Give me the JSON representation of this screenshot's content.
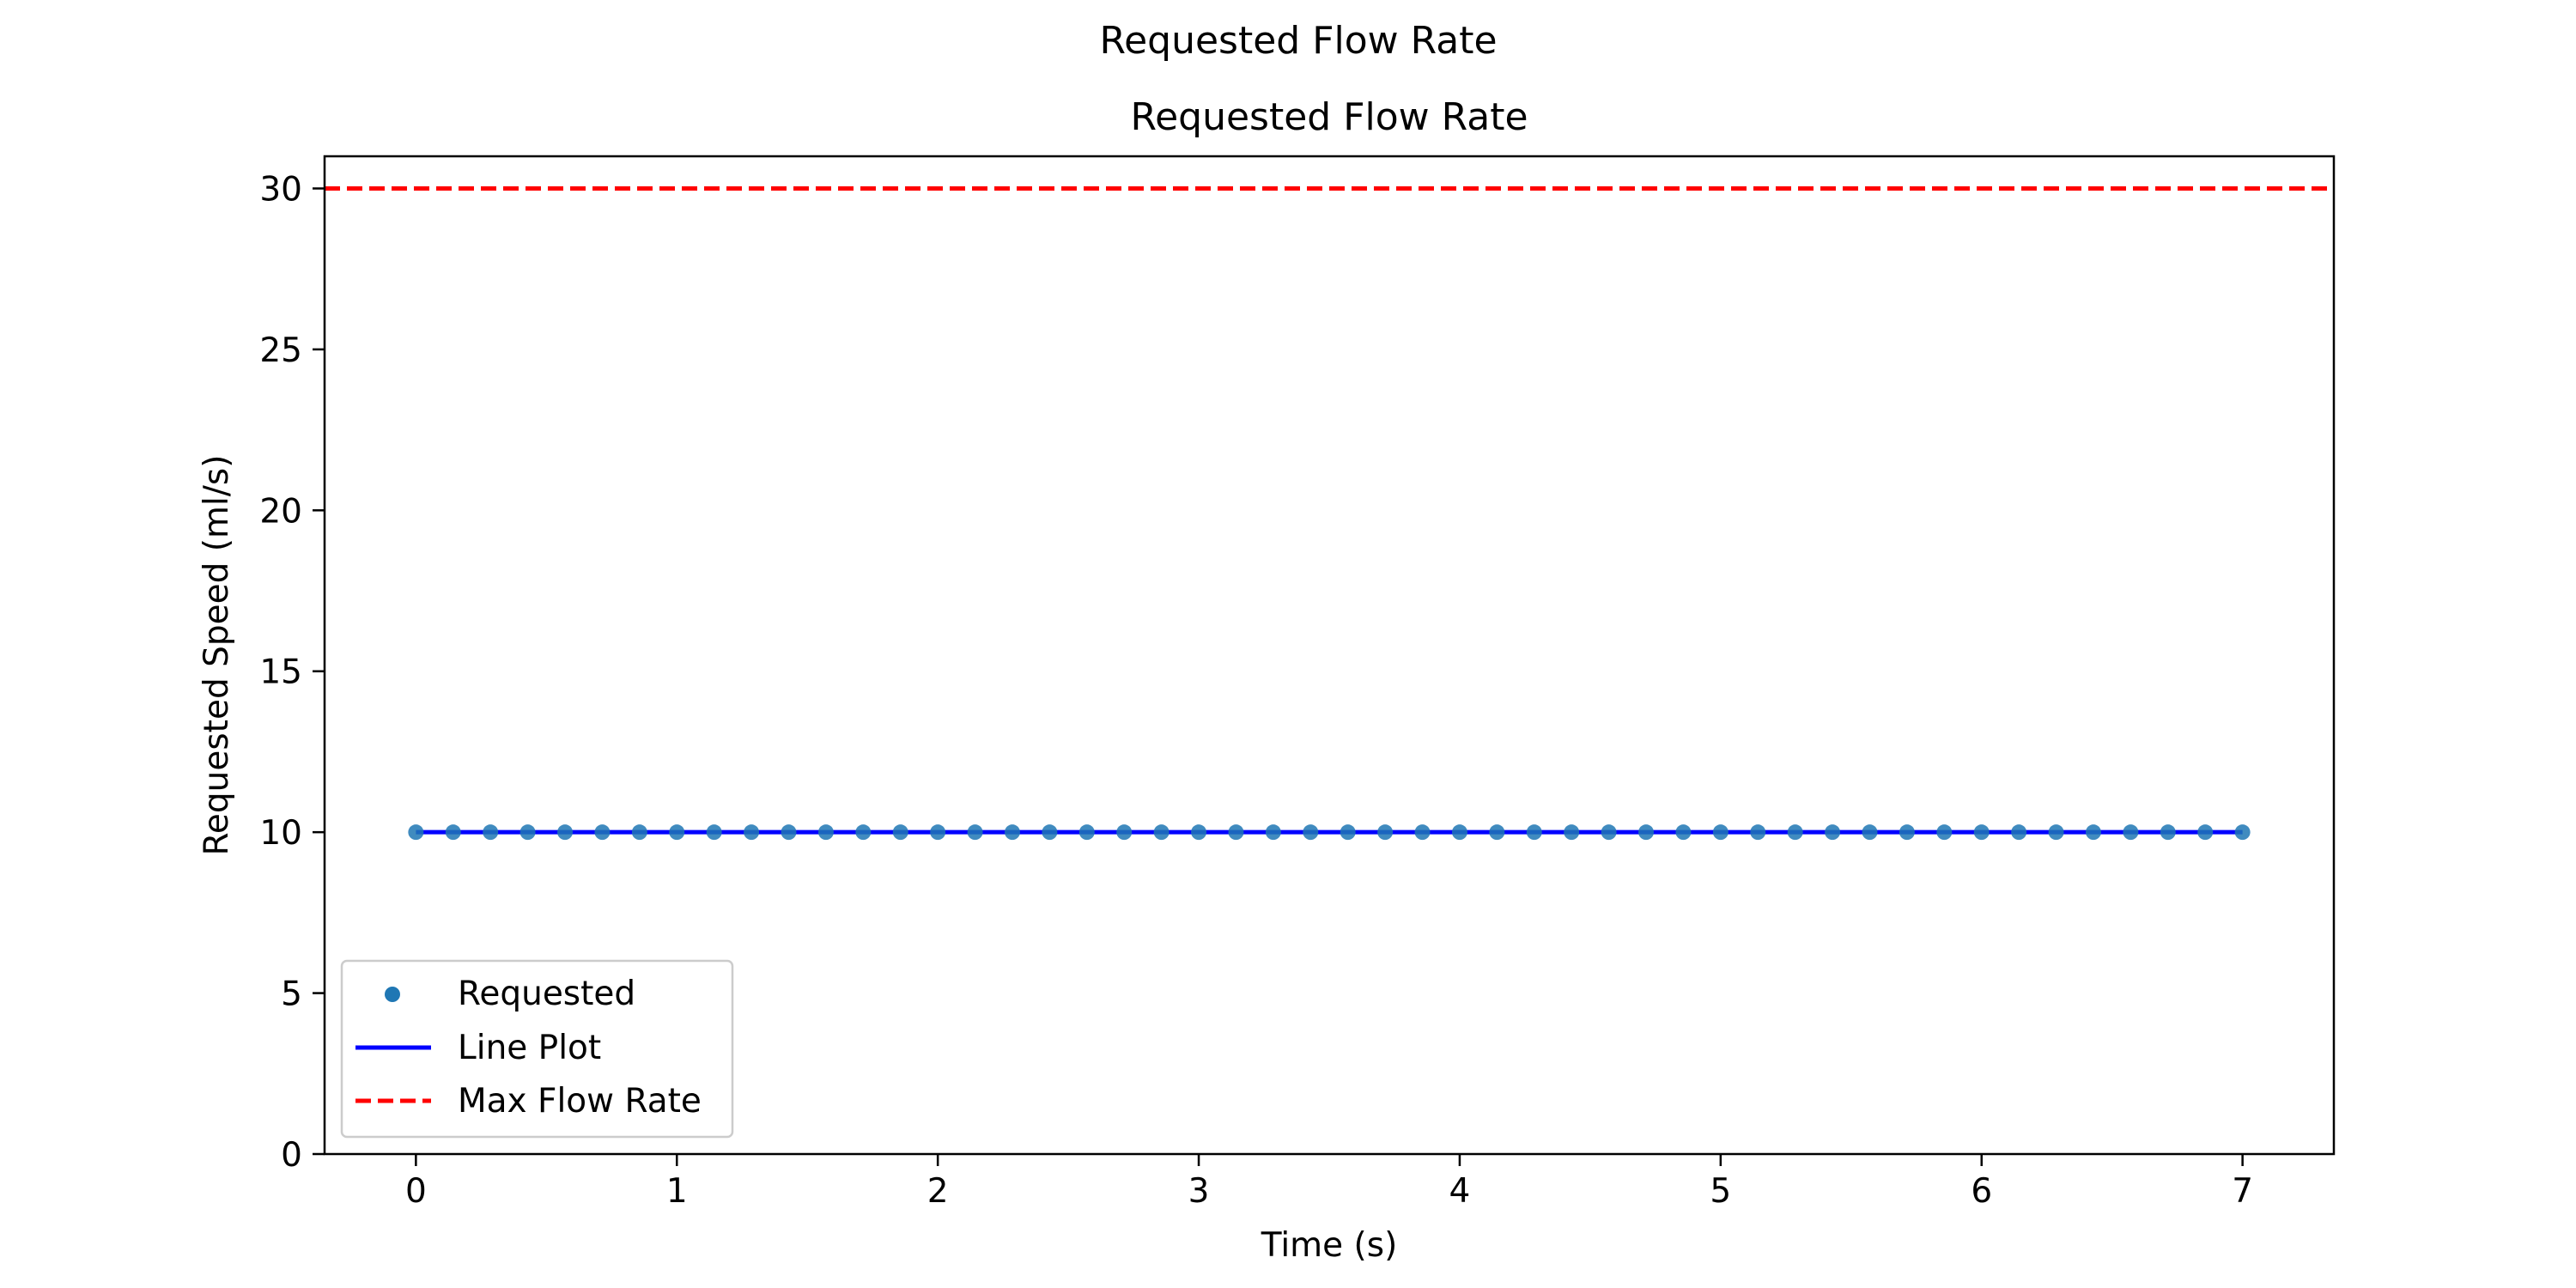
{
  "figure": {
    "suptitle": "Requested Flow Rate"
  },
  "chart_data": {
    "type": "line",
    "title": "Requested Flow Rate",
    "xlabel": "Time (s)",
    "ylabel": "Requested Speed (ml/s)",
    "xlim": [
      -0.35,
      7.35
    ],
    "ylim": [
      0,
      31
    ],
    "xticks": [
      0,
      1,
      2,
      3,
      4,
      5,
      6,
      7
    ],
    "yticks": [
      0,
      5,
      10,
      15,
      20,
      25,
      30
    ],
    "grid": false,
    "legend_placement": "lower-left",
    "series": [
      {
        "name": "Requested",
        "kind": "scatter",
        "color": "#1f77b4",
        "x_start": 0,
        "x_end": 7,
        "count": 50,
        "y_value": 10
      },
      {
        "name": "Line Plot",
        "kind": "line",
        "color": "#0000ff",
        "x_start": 0,
        "x_end": 7,
        "y_value": 10
      },
      {
        "name": "Max Flow Rate",
        "kind": "hline",
        "style": "dashed",
        "color": "#ff0000",
        "y_value": 30
      }
    ],
    "legend": [
      "Requested",
      "Line Plot",
      "Max Flow Rate"
    ]
  }
}
